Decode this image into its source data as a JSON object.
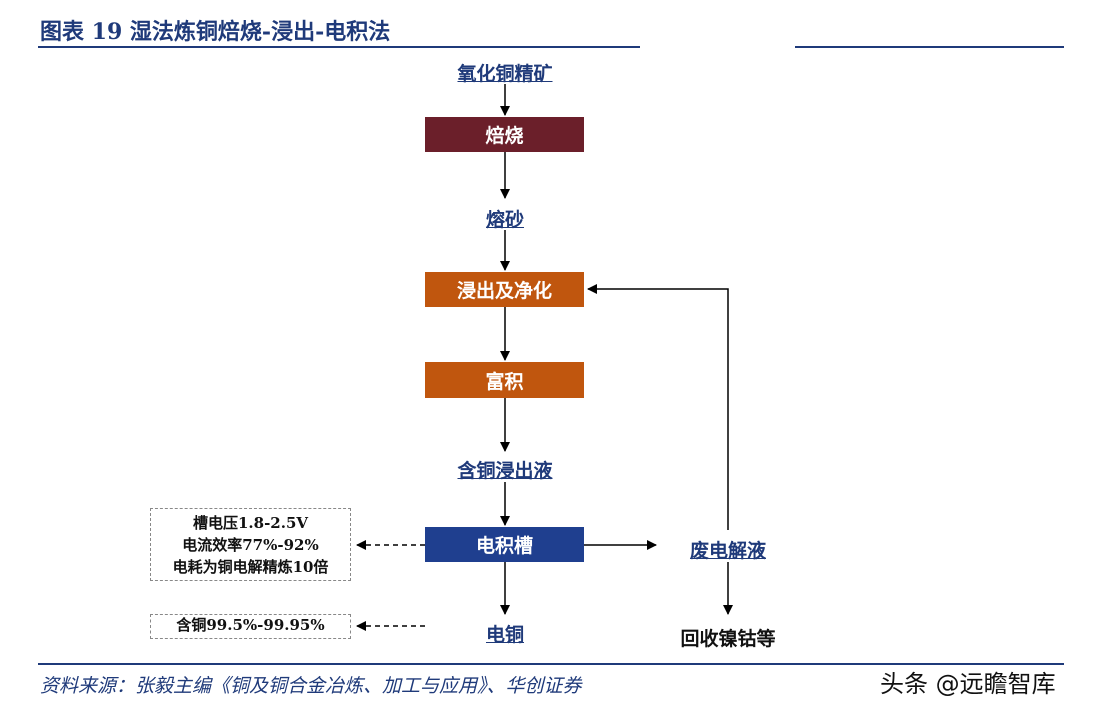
{
  "header": {
    "title": "图表 19  湿法炼铜焙烧-浸出-电积法"
  },
  "flow": {
    "raw": "氧化铜精矿",
    "roast": "焙烧",
    "calcine": "熔砂",
    "leach": "浸出及净化",
    "enrich": "富积",
    "solution": "含铜浸出液",
    "electro": "电积槽",
    "spent": "废电解液",
    "cathode": "电铜",
    "recover": "回收镍钴等"
  },
  "notes": {
    "params": [
      "槽电压1.8-2.5V",
      "电流效率77%-92%",
      "电耗为铜电解精炼10倍"
    ],
    "purity": "含铜99.5%-99.95%"
  },
  "footer": {
    "source": "资料来源：张毅主编《铜及铜合金冶炼、加工与应用》、华创证券",
    "watermark": "头条 @远瞻智库"
  },
  "colors": {
    "roast_box": "#6b1f2a",
    "leach_box": "#c0560e",
    "electro_box": "#1f3f8f",
    "text_blue": "#1f3a7a"
  }
}
